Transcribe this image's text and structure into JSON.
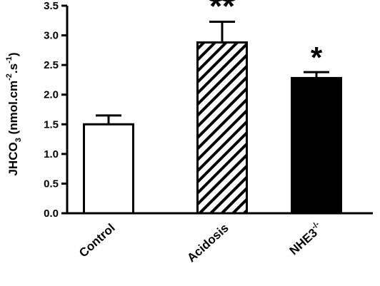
{
  "chart_data": {
    "type": "bar",
    "categories": [
      "Control",
      "Acidosis",
      "NHE3"
    ],
    "category_superscripts": [
      "",
      "",
      "-/-"
    ],
    "values": [
      1.5,
      2.88,
      2.28
    ],
    "errors": [
      0.15,
      0.35,
      0.1
    ],
    "significance": [
      "",
      "**",
      "*"
    ],
    "fills": [
      "white",
      "hatched",
      "black"
    ],
    "ylabel": {
      "main": "JHCO",
      "sub": "3",
      "units_a": " (nmol.cm",
      "sup_a": "-2",
      "units_b": ".s",
      "sup_b": "-1",
      "units_c": ")"
    },
    "ylim": [
      0,
      3.5
    ],
    "yticks": [
      "0.0",
      "0.5",
      "1.0",
      "1.5",
      "2.0",
      "2.5",
      "3.0",
      "3.5"
    ],
    "grid": false,
    "colors": {
      "axis": "#000000",
      "bar_stroke": "#000000",
      "dark_fill": "#000000",
      "light_fill": "#ffffff"
    }
  }
}
